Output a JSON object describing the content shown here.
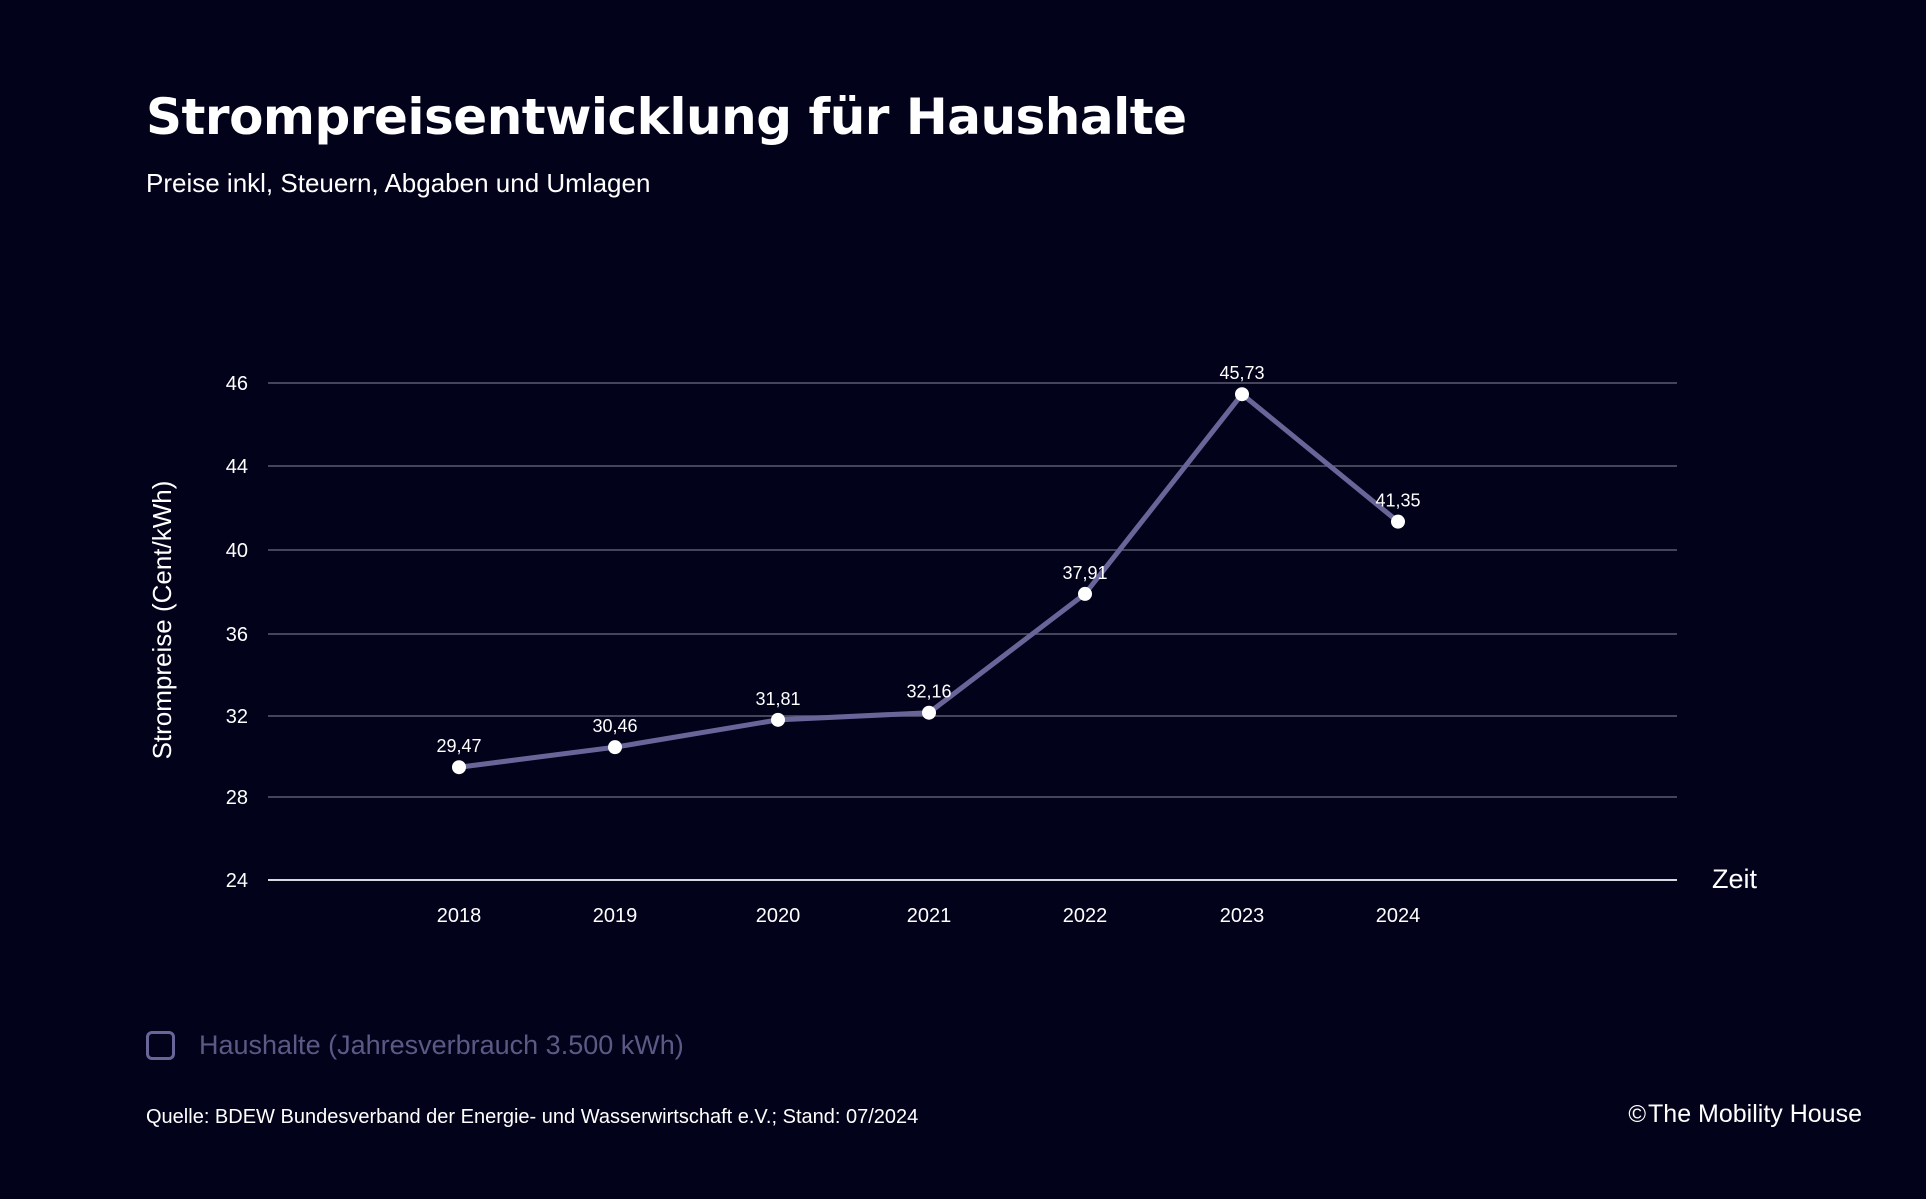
{
  "colors": {
    "background": "#02021a",
    "line": "#6a6599",
    "grid": "#5a5a70",
    "text": "#ffffff",
    "legend_text": "#5d5985"
  },
  "chart_data": {
    "type": "line",
    "title": "Strompreisentwicklung für Haushalte",
    "subtitle": "Preise inkl, Steuern, Abgaben und Umlagen",
    "xlabel": "Zeit",
    "ylabel": "Strompreise (Cent/kWh)",
    "categories": [
      "2018",
      "2019",
      "2020",
      "2021",
      "2022",
      "2023",
      "2024"
    ],
    "y_ticks": [
      24,
      28,
      32,
      36,
      40,
      44,
      46
    ],
    "series": [
      {
        "name": "Haushalte (Jahresverbrauch 3.500 kWh)",
        "values": [
          29.47,
          30.46,
          31.81,
          32.16,
          37.91,
          45.73,
          41.35
        ],
        "labels": [
          "29,47",
          "30,46",
          "31,81",
          "32,16",
          "37,91",
          "45,73",
          "41,35"
        ]
      }
    ],
    "grid": true,
    "legend": "bottom-left"
  },
  "footer": {
    "source": "Quelle: BDEW Bundesverband der Energie- und Wasserwirtschaft e.V.; Stand: 07/2024",
    "copyright_symbol": "©",
    "copyright": "The Mobility House"
  }
}
